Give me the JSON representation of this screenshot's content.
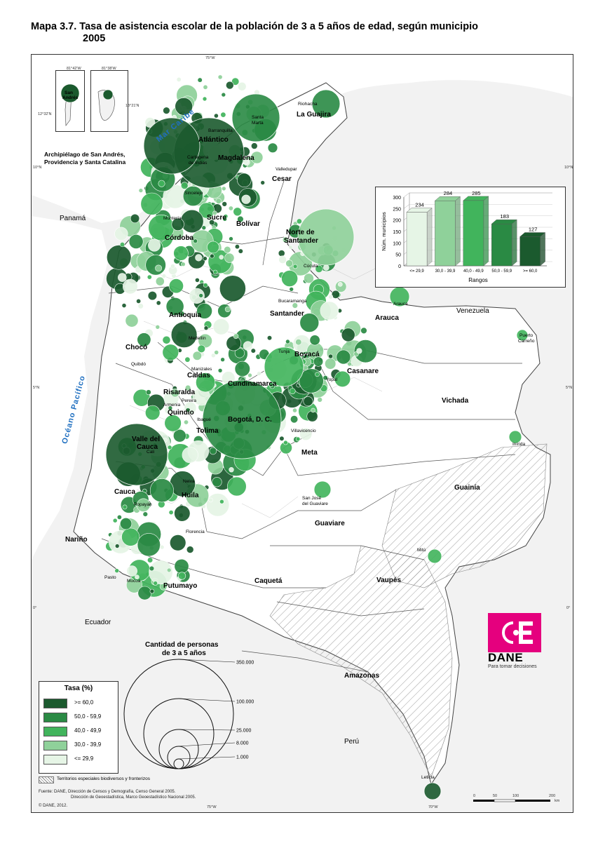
{
  "title": {
    "line1": "Mapa 3.7. Tasa de asistencia escolar de la población de 3 a 5 años de edad, según municipio",
    "line2": "2005"
  },
  "map": {
    "coords": {
      "top_75w": "75°W",
      "bottom_75w": "75°W",
      "bottom_70w": "70°W",
      "left_10n": "10°N",
      "right_10n": "10°N",
      "left_5n": "5°N",
      "right_5n": "5°N",
      "left_0": "0°",
      "right_0": "0°"
    },
    "seas": {
      "caribe": "Mar Caribe",
      "pacifico": "Océano Pacífico"
    },
    "countries": {
      "panama": "Panamá",
      "venezuela": "Venezuela",
      "ecuador": "Ecuador",
      "peru": "Perú"
    },
    "departments": {
      "la_guajira": "La Guajira",
      "atlantico": "Atlántico",
      "magdalena": "Magdalena",
      "cesar": "Cesar",
      "sucre": "Sucre",
      "bolivar": "Bolívar",
      "cordoba": "Córdoba",
      "norte_santander_1": "Norte de",
      "norte_santander_2": "Santander",
      "antioquia": "Antioquia",
      "santander": "Santander",
      "arauca": "Arauca",
      "choco": "Chocó",
      "boyaca": "Boyacá",
      "casanare": "Casanare",
      "caldas": "Caldas",
      "cundinamarca": "Cundinamarca",
      "risaralda": "Risaralda",
      "quindio": "Quindío",
      "tolima": "Tolima",
      "bogota": "Bogotá, D. C.",
      "vichada": "Vichada",
      "valle_1": "Valle del",
      "valle_2": "Cauca",
      "meta": "Meta",
      "cauca": "Cauca",
      "huila": "Huila",
      "guainia": "Guainía",
      "guaviare": "Guaviare",
      "narino": "Nariño",
      "vaupes": "Vaupés",
      "caqueta": "Caquetá",
      "putumayo": "Putumayo",
      "amazonas": "Amazonas"
    },
    "capitals": {
      "riohacha": "Riohacha",
      "santa_marta_1": "Santa",
      "santa_marta_2": "Marta",
      "barranquilla": "Barranquilla",
      "cartagena_1": "Cartagena",
      "cartagena_2": "de Indias",
      "valledupar": "Valledupar",
      "sincelejo": "Sincelejo",
      "monteria": "Montería",
      "cucuta": "Cúcuta",
      "bucaramanga": "Bucaramanga",
      "arauca_city": "Arauca",
      "medellin": "Medellín",
      "tunja": "Tunja",
      "yopal": "Yopal",
      "quibdo": "Quibdó",
      "manizales": "Manizales",
      "pereira": "Pereira",
      "armenia": "Armenia",
      "ibague": "Ibagué",
      "villavicencio": "Villavicencio",
      "puerto_carreno_1": "Puerto",
      "puerto_carreno_2": "Carreño",
      "inirida": "Inírida",
      "cali": "Cali",
      "neiva": "Neiva",
      "popayan": "Popayán",
      "san_jose_1": "San José",
      "san_jose_2": "del Guaviare",
      "florencia": "Florencia",
      "mitu": "Mitú",
      "pasto": "Pasto",
      "mocoa": "Mocoa",
      "leticia": "Leticia"
    }
  },
  "inset": {
    "caption_1": "Archipiélago de San Andrés,",
    "caption_2": "Providencia y Santa Catalina",
    "coord_a": "81°42'W",
    "coord_b": "81°38'W",
    "coord_c": "12°32'N",
    "coord_d": "13°21'N",
    "label_1": "San",
    "label_2": "Andrés"
  },
  "chart_data": {
    "type": "bar",
    "categories": [
      "<= 29,9",
      "30,0 - 39,9",
      "40,0 - 49,9",
      "50,0 - 59,9",
      ">= 60,0"
    ],
    "values": [
      234,
      284,
      285,
      183,
      127
    ],
    "colors": [
      "#e6f5e6",
      "#8fd19a",
      "#41b45c",
      "#2a8a44",
      "#1b5a2e"
    ],
    "xlabel": "Rangos",
    "ylabel": "Núm. municipios",
    "ylim": [
      0,
      300
    ],
    "yticks": [
      0,
      50,
      100,
      150,
      200,
      250,
      300
    ],
    "grid": true
  },
  "size_legend": {
    "title_1": "Cantidad de personas",
    "title_2": "de 3 a 5 años",
    "values": [
      "350.000",
      "100.000",
      "25.000",
      "8.000",
      "1.000"
    ]
  },
  "color_legend": {
    "title": "Tasa (%)",
    "items": [
      {
        "label": ">= 60,0",
        "color": "#1b5a2e"
      },
      {
        "label": "50,0 - 59,9",
        "color": "#2a8a44"
      },
      {
        "label": "40,0 - 49,9",
        "color": "#41b45c"
      },
      {
        "label": "30,0 - 39,9",
        "color": "#8fd19a"
      },
      {
        "label": "<= 29,9",
        "color": "#e6f5e6"
      }
    ]
  },
  "territories_note": "Territorios especiales biodiversos y fronterizos",
  "source": {
    "line1": "Fuente: DANE, Dirección de Censos y Demografía, Censo General 2005.",
    "line2": "Dirección de Geoestadística, Marco Geoestadístico Nacional 2005.",
    "line3": "© DANE, 2012."
  },
  "scale": {
    "ticks": [
      "0",
      "50",
      "100",
      "200"
    ],
    "unit": "km"
  },
  "dane": {
    "name": "DANE",
    "tagline": "Para tomar decisiones"
  }
}
